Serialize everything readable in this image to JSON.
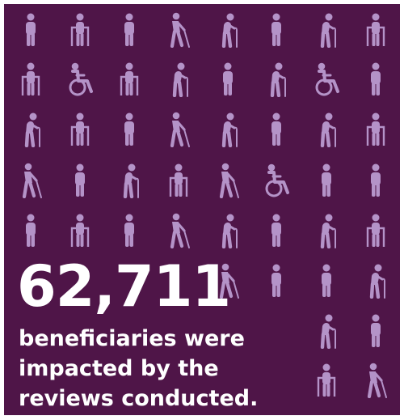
{
  "colors": {
    "background": "#4f1548",
    "icon": "#b493c8",
    "text": "#ffffff"
  },
  "statistic": {
    "value": "62,711",
    "caption_lines": [
      "beneficiaries were",
      "impacted by the",
      "reviews conducted."
    ]
  },
  "icon_rows": [
    [
      "standing-person-icon",
      "walker-person-icon",
      "standing-person-icon",
      "cane-person-icon",
      "elderly-cane-person-icon",
      "standing-person-icon",
      "elderly-cane-person-icon",
      "walker-person-icon"
    ],
    [
      "walker-person-icon",
      "wheelchair-person-icon",
      "walker-person-icon",
      "elderly-cane-person-icon",
      "standing-person-icon",
      "elderly-cane-person-icon",
      "wheelchair-person-icon",
      "standing-person-icon"
    ],
    [
      "elderly-cane-person-icon",
      "walker-person-icon",
      "standing-person-icon",
      "cane-person-icon",
      "elderly-cane-person-icon",
      "standing-person-icon",
      "elderly-cane-person-icon",
      "walker-person-icon"
    ],
    [
      "cane-person-icon",
      "standing-person-icon",
      "elderly-cane-person-icon",
      "walker-person-icon",
      "cane-person-icon",
      "wheelchair-person-icon",
      "standing-person-icon",
      "standing-person-icon"
    ],
    [
      "standing-person-icon",
      "walker-person-icon",
      "standing-person-icon",
      "cane-person-icon",
      "elderly-cane-person-icon",
      "standing-person-icon",
      "elderly-cane-person-icon",
      "walker-person-icon"
    ],
    [
      null,
      null,
      null,
      null,
      "cane-person-icon",
      "standing-person-icon",
      "standing-person-icon",
      "elderly-cane-person-icon"
    ],
    [
      null,
      null,
      null,
      null,
      null,
      null,
      "elderly-cane-person-icon",
      "standing-person-icon"
    ],
    [
      null,
      null,
      null,
      null,
      null,
      null,
      "walker-person-icon",
      "cane-person-icon"
    ]
  ]
}
